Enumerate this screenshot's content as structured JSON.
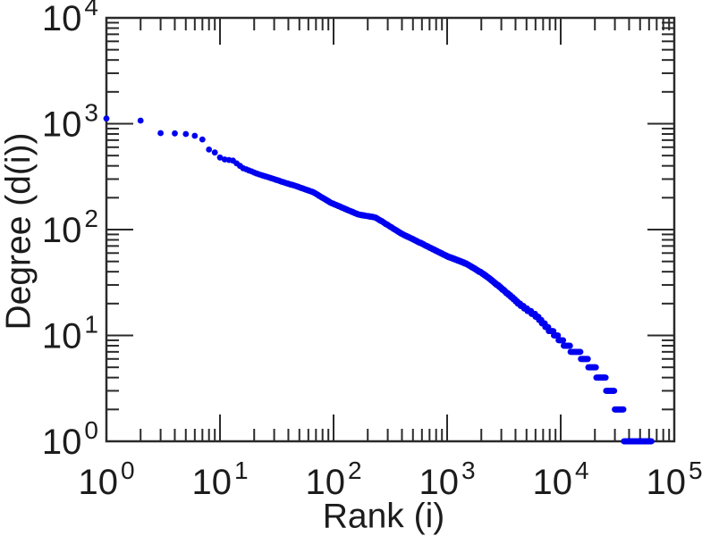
{
  "chart_data": {
    "type": "scatter",
    "title": "",
    "xlabel": "Rank (i)",
    "ylabel": "Degree (d(i))",
    "x_scale": "log",
    "y_scale": "log",
    "xlim": [
      1,
      100000
    ],
    "ylim": [
      1,
      10000
    ],
    "x_tick_exponents": [
      0,
      1,
      2,
      3,
      4,
      5
    ],
    "y_tick_exponents": [
      0,
      1,
      2,
      3,
      4
    ],
    "log_base_label": "10",
    "grid": false,
    "legend": null,
    "tick_style": "inward, mirrored on all four sides, log minor ticks 2-9",
    "marker_shape": "filled-circle",
    "marker_color": "#0000f0",
    "marker_radius_px": 3.4,
    "axis_color": "#2a2a2a",
    "text_color": "#1c1c1c",
    "background_color": "#ffffff",
    "degrees_are_integers": true,
    "max_rank": 63000,
    "series": [
      {
        "name": "rank-degree curve",
        "anchor_points_rank_degree": [
          [
            1,
            1120
          ],
          [
            2,
            1070
          ],
          [
            3,
            815
          ],
          [
            4,
            810
          ],
          [
            5,
            800
          ],
          [
            6,
            770
          ],
          [
            7,
            710
          ],
          [
            8,
            570
          ],
          [
            9,
            535
          ],
          [
            10,
            480
          ],
          [
            11,
            460
          ],
          [
            13,
            448
          ],
          [
            16,
            380
          ],
          [
            22,
            333
          ],
          [
            30,
            300
          ],
          [
            38,
            275
          ],
          [
            46,
            259
          ],
          [
            66,
            226
          ],
          [
            95,
            179
          ],
          [
            165,
            139
          ],
          [
            235,
            130
          ],
          [
            400,
            91
          ],
          [
            580,
            75
          ],
          [
            1000,
            56
          ],
          [
            1450,
            48
          ],
          [
            2100,
            38
          ],
          [
            3000,
            28
          ],
          [
            4300,
            20
          ],
          [
            6200,
            15
          ],
          [
            7500,
            12
          ],
          [
            9100,
            10
          ],
          [
            10600,
            8.5
          ],
          [
            12200,
            7.5
          ],
          [
            14900,
            6.5
          ],
          [
            17500,
            5.5
          ],
          [
            20600,
            4.5
          ],
          [
            24900,
            3.5
          ],
          [
            29900,
            2.5
          ],
          [
            36000,
            1.5
          ],
          [
            63000,
            1
          ]
        ]
      }
    ]
  }
}
